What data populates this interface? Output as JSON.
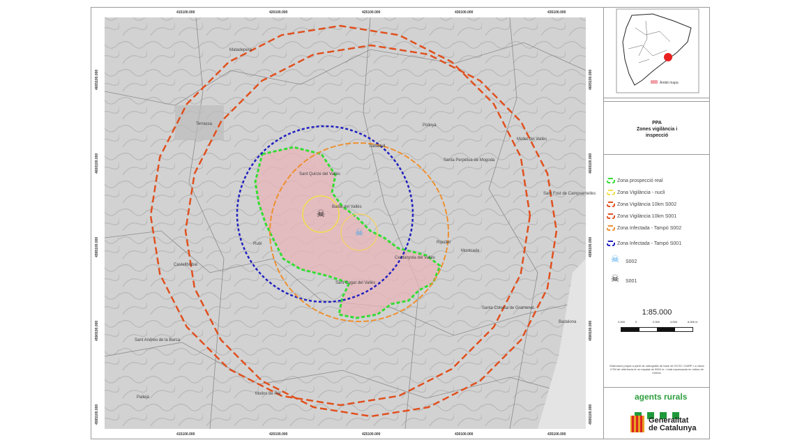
{
  "map": {
    "top_coords": [
      "415100.000",
      "420100.000",
      "425100.000",
      "430100.000",
      "435100.000"
    ],
    "side_coords": [
      "4605100.000",
      "4600100.000",
      "4595100.000",
      "4590100.000",
      "4585100.000"
    ],
    "places": [
      {
        "name": "Terrassa"
      },
      {
        "name": "Sabadell"
      },
      {
        "name": "Sant Quirze del Vallès"
      },
      {
        "name": "Badia del Vallès"
      },
      {
        "name": "Rubí"
      },
      {
        "name": "Sant Cugat del Vallès"
      },
      {
        "name": "Cerdanyola del Vallès"
      },
      {
        "name": "Santa Perpètua de Mogoda"
      },
      {
        "name": "Mollet del Vallès"
      },
      {
        "name": "Ripollet"
      },
      {
        "name": "Montcada"
      },
      {
        "name": "Santa Coloma de Gramenet"
      },
      {
        "name": "Badalona"
      },
      {
        "name": "Castellbisbal"
      },
      {
        "name": "Sant Andreu de la Barca"
      },
      {
        "name": "Pallejà"
      },
      {
        "name": "Molins de Rei"
      },
      {
        "name": "Matadepera"
      },
      {
        "name": "Polinyà"
      },
      {
        "name": "Sant Fost de Campsentelles"
      }
    ]
  },
  "inset": {
    "legend": "Àmbit mapa"
  },
  "title": {
    "line1": "PPA",
    "line2": "Zones vigilància i",
    "line3": "inspecció"
  },
  "legend": [
    {
      "label": "Zona prospecció real",
      "color": "#33dd33"
    },
    {
      "label": "Zona Vigilància - nucli",
      "color": "#f2e04a"
    },
    {
      "label": "Zona Vigilància 10km S002",
      "color": "#e0501e"
    },
    {
      "label": "Zona Vigilància 10km S001",
      "color": "#e0501e"
    },
    {
      "label": "Zona Infectada - Tampó S002",
      "color": "#ee9030"
    },
    {
      "label": "Zona Infectada - Tampó S001",
      "color": "#2020c0"
    },
    {
      "label": "S002",
      "icon": "skull-crossbones-blue-icon",
      "color": "#4aa8e8"
    },
    {
      "label": "S001",
      "icon": "skull-crossbones-black-icon",
      "color": "#111111"
    }
  ],
  "scale": {
    "text": "1:85.000",
    "ticks": [
      "2.000",
      "0",
      "2.000",
      "4.000",
      "6.000 m"
    ]
  },
  "note": "Elaboració pròpia a partir de cartografia de base de l'ICGC i DARP. La xarxa UTM de referència té un espaiat de 5000 m. i està expressada en milers de metres.",
  "footer": {
    "agents": "agents rurals",
    "gen1": "Generalitat",
    "gen2": "de Catalunya"
  }
}
